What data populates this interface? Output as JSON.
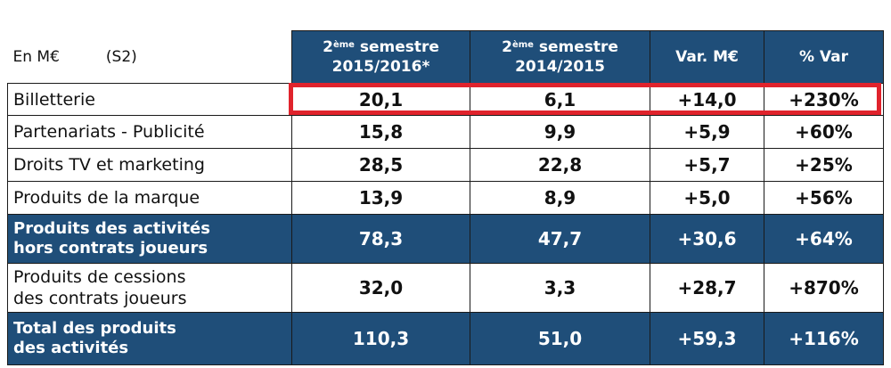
{
  "header": {
    "unit_label": "En M€",
    "period_label": "(S2)",
    "columns": [
      {
        "ord_num": "2",
        "ord_sup": "ème",
        "line1_rest": " semestre",
        "line2": "2015/2016*"
      },
      {
        "ord_num": "2",
        "ord_sup": "ème",
        "line1_rest": " semestre",
        "line2": "2014/2015"
      },
      {
        "label": "Var. M€"
      },
      {
        "label": "% Var"
      }
    ]
  },
  "rows": [
    {
      "label_lines": [
        "Billetterie"
      ],
      "values": [
        "20,1",
        "6,1",
        "+14,0",
        "+230%"
      ],
      "subtotal": false,
      "highlighted": true
    },
    {
      "label_lines": [
        "Partenariats - Publicité"
      ],
      "values": [
        "15,8",
        "9,9",
        "+5,9",
        "+60%"
      ],
      "subtotal": false
    },
    {
      "label_lines": [
        "Droits TV et marketing"
      ],
      "values": [
        "28,5",
        "22,8",
        "+5,7",
        "+25%"
      ],
      "subtotal": false
    },
    {
      "label_lines": [
        "Produits de la marque"
      ],
      "values": [
        "13,9",
        "8,9",
        "+5,0",
        "+56%"
      ],
      "subtotal": false
    },
    {
      "label_lines": [
        "Produits des activités",
        "hors contrats joueurs"
      ],
      "values": [
        "78,3",
        "47,7",
        "+30,6",
        "+64%"
      ],
      "subtotal": true
    },
    {
      "label_lines": [
        "Produits de cessions",
        "des contrats joueurs"
      ],
      "values": [
        "32,0",
        "3,3",
        "+28,7",
        "+870%"
      ],
      "subtotal": false
    },
    {
      "label_lines": [
        "Total des produits",
        "des activités"
      ],
      "values": [
        "110,3",
        "51,0",
        "+59,3",
        "+116%"
      ],
      "subtotal": true
    }
  ],
  "colors": {
    "header_bg": "#1f4e79",
    "highlight": "#e0232c"
  }
}
